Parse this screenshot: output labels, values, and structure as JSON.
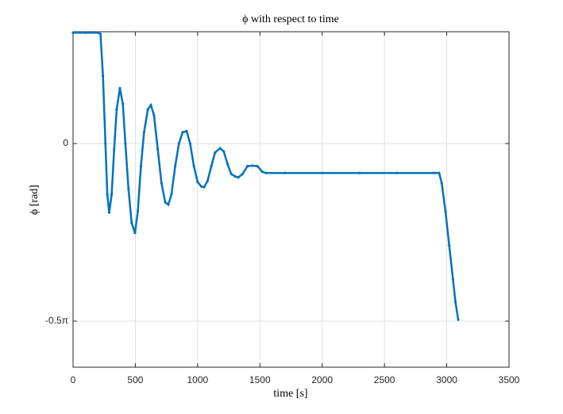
{
  "chart_data": {
    "type": "line",
    "title": "ϕ with respect to time",
    "x_label": "time [s]",
    "y_label": "ϕ [rad]",
    "x": [
      0,
      100,
      200,
      220,
      240,
      260,
      275,
      290,
      310,
      330,
      350,
      376,
      400,
      420,
      445,
      470,
      497,
      520,
      545,
      570,
      600,
      625,
      650,
      680,
      710,
      740,
      765,
      790,
      820,
      850,
      880,
      912,
      940,
      970,
      1000,
      1030,
      1052,
      1080,
      1110,
      1140,
      1180,
      1210,
      1240,
      1270,
      1300,
      1326,
      1360,
      1400,
      1441,
      1480,
      1520,
      1549,
      1700,
      2000,
      2300,
      2600,
      2900,
      2939,
      2960,
      2990,
      3020,
      3050,
      3070,
      3092
    ],
    "series": [
      {
        "color": "#0072bd",
        "values": [
          0.98,
          0.98,
          0.98,
          0.97,
          0.6,
          0.0,
          -0.45,
          -0.61,
          -0.45,
          -0.05,
          0.3,
          0.49,
          0.35,
          0.0,
          -0.4,
          -0.7,
          -0.79,
          -0.6,
          -0.2,
          0.1,
          0.3,
          0.34,
          0.25,
          -0.05,
          -0.35,
          -0.52,
          -0.54,
          -0.45,
          -0.2,
          0.0,
          0.1,
          0.11,
          0.0,
          -0.2,
          -0.34,
          -0.38,
          -0.386,
          -0.33,
          -0.2,
          -0.08,
          -0.042,
          -0.07,
          -0.18,
          -0.27,
          -0.29,
          -0.3,
          -0.27,
          -0.2,
          -0.196,
          -0.2,
          -0.25,
          -0.26,
          -0.26,
          -0.26,
          -0.26,
          -0.26,
          -0.26,
          -0.26,
          -0.35,
          -0.6,
          -0.9,
          -1.2,
          -1.4,
          -1.557
        ]
      }
    ],
    "xlim": [
      0,
      3500
    ],
    "xticks": [
      0,
      500,
      1000,
      1500,
      2000,
      2500,
      3000,
      3500
    ],
    "ylim": [
      -1.978,
      0.989
    ],
    "yticks": [
      {
        "value": -1.5708,
        "label": "-0.5π"
      },
      0
    ],
    "grid": true
  }
}
